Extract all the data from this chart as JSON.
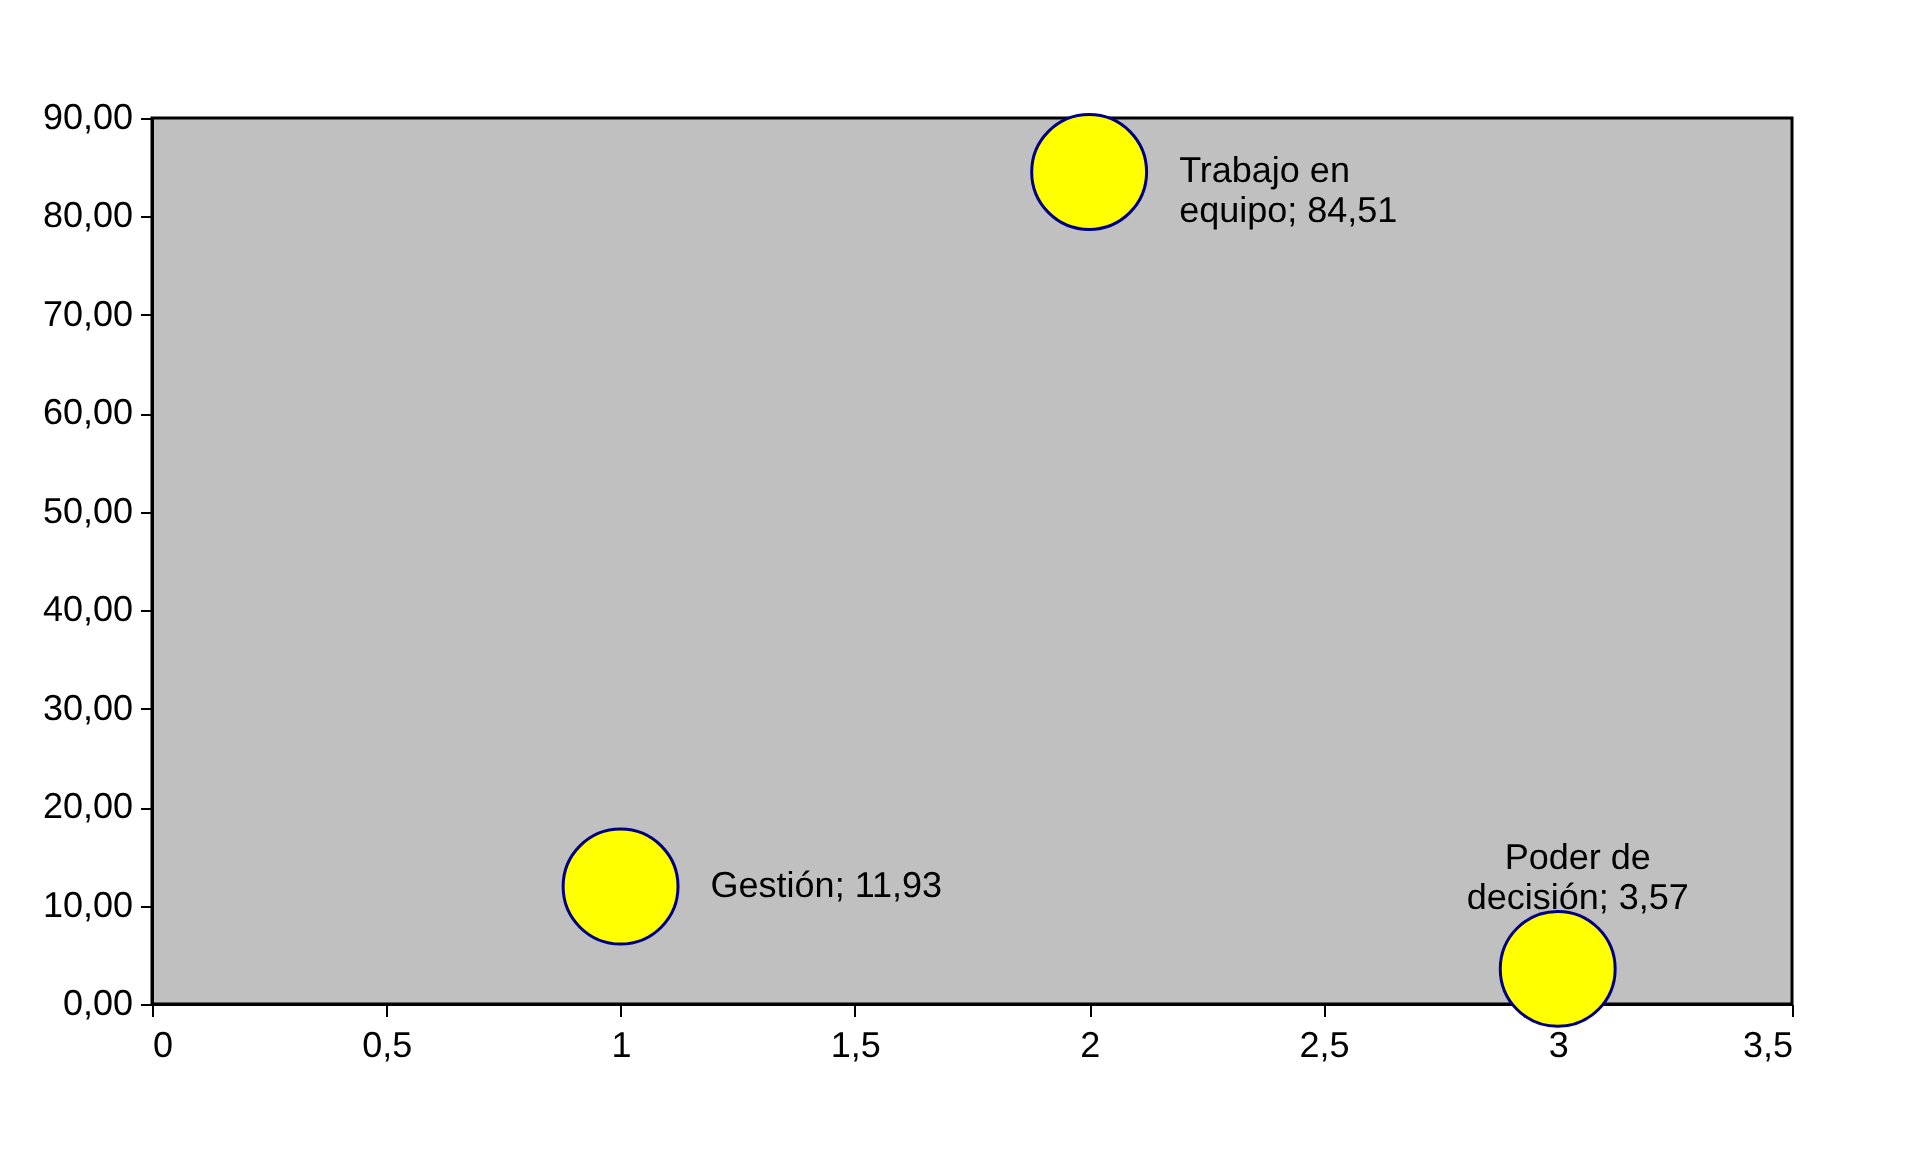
{
  "chart_data": {
    "type": "bubble",
    "x": [
      1,
      2,
      3
    ],
    "values": [
      11.93,
      84.51,
      3.57
    ],
    "sizes": [
      1,
      1,
      1
    ],
    "color": "#ffff00",
    "value_labels": [
      "Gestión; 11,93",
      "Trabajo en\nequipo; 84,51",
      "Poder de\ndecisión; 3,57"
    ],
    "xlim": [
      0,
      3.5
    ],
    "ylim": [
      0,
      90
    ],
    "xticks": [
      0,
      {
        "value": 0.5,
        "label": "0,5"
      },
      1,
      {
        "value": 1.5,
        "label": "1,5"
      },
      2,
      {
        "value": 2.5,
        "label": "2,5"
      },
      3,
      {
        "value": 3.5,
        "label": "3,5"
      }
    ],
    "yticks": [
      {
        "value": 0,
        "label": "0,00"
      },
      {
        "value": 10,
        "label": "10,00"
      },
      {
        "value": 20,
        "label": "20,00"
      },
      {
        "value": 30,
        "label": "30,00"
      },
      {
        "value": 40,
        "label": "40,00"
      },
      {
        "value": 50,
        "label": "50,00"
      },
      {
        "value": 60,
        "label": "60,00"
      },
      {
        "value": 70,
        "label": "70,00"
      },
      {
        "value": 80,
        "label": "80,00"
      },
      {
        "value": 90,
        "label": "90,00"
      }
    ],
    "grid": false
  }
}
